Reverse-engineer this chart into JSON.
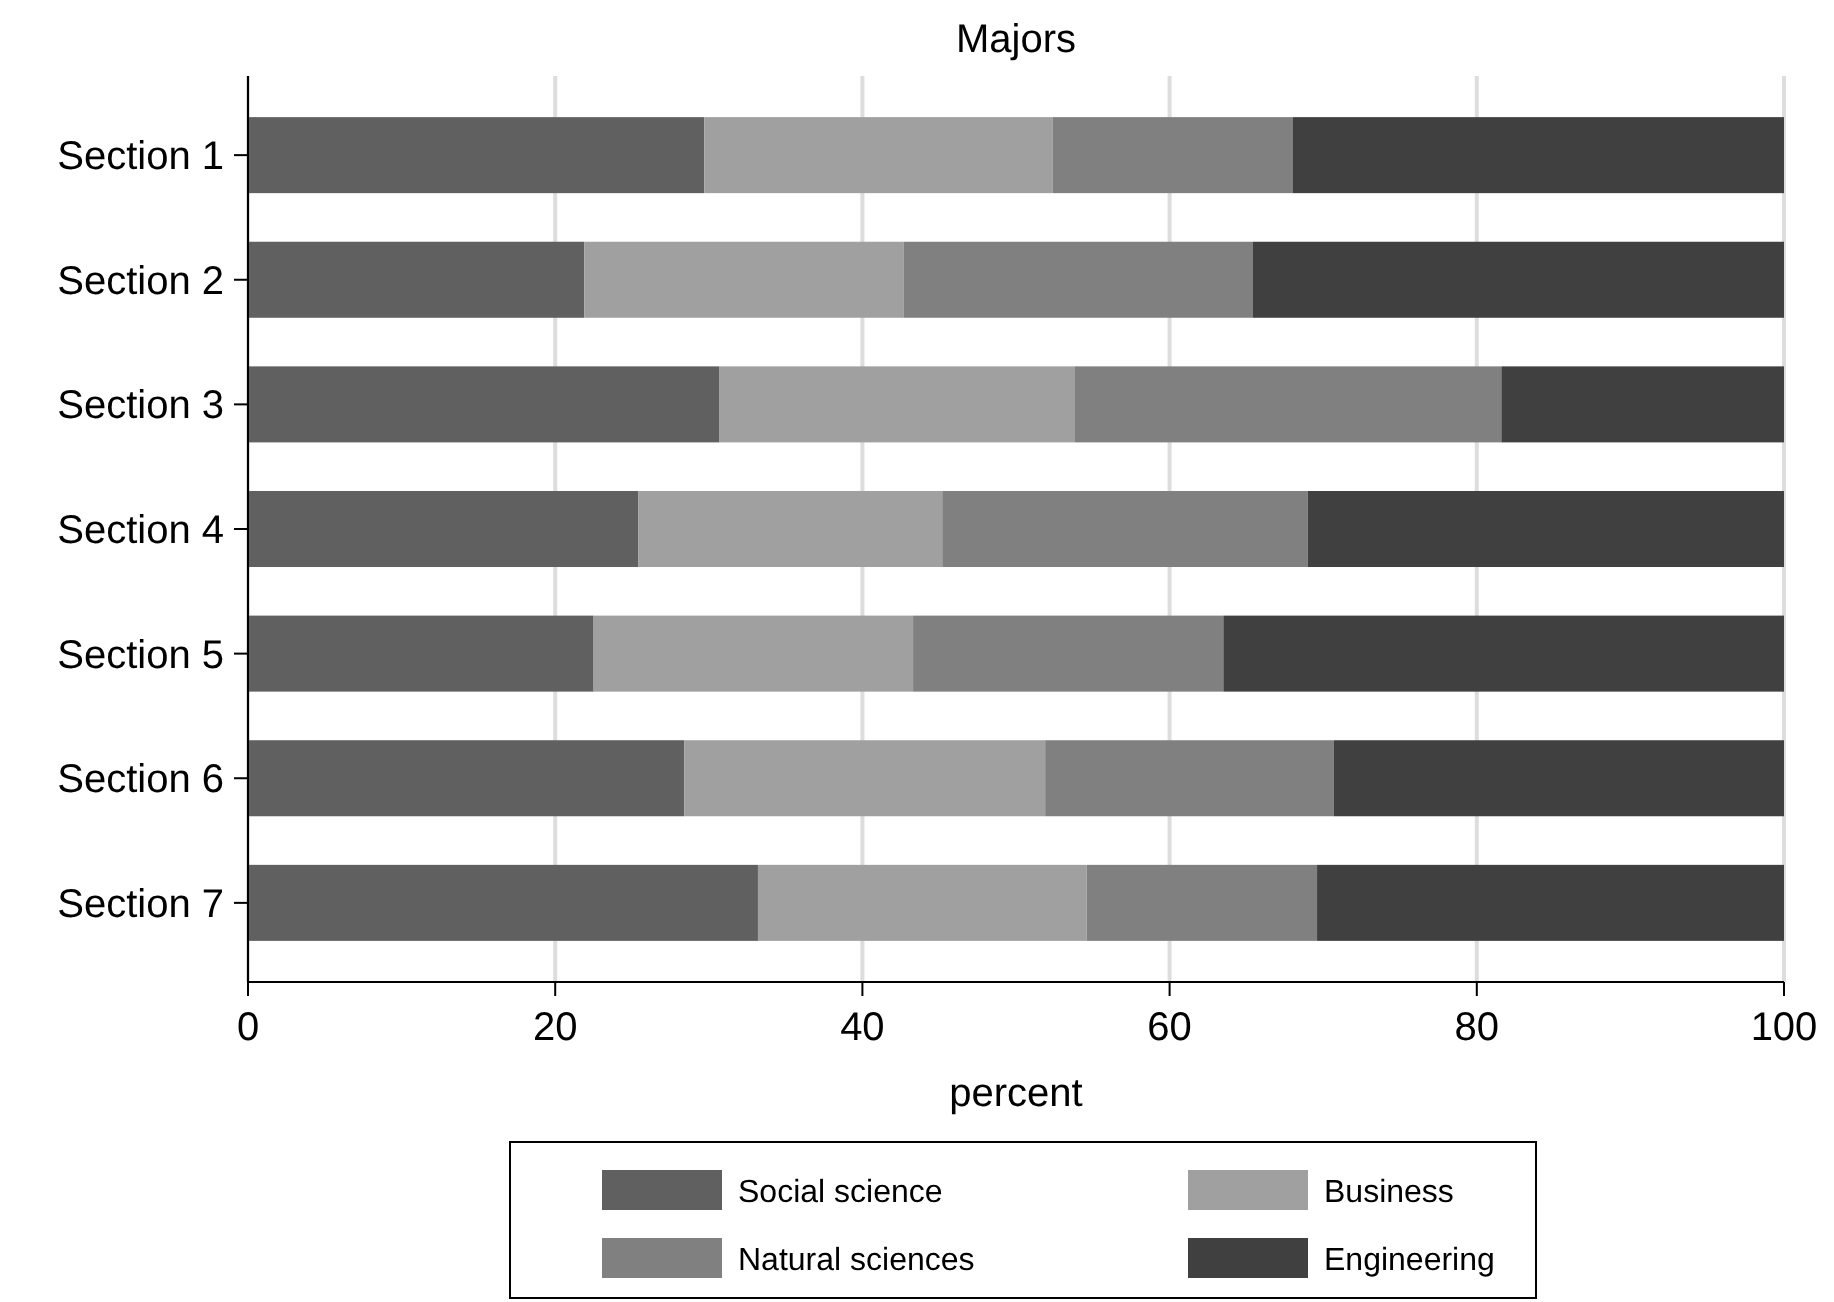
{
  "chart_data": {
    "type": "bar",
    "orientation": "horizontal",
    "stacked": true,
    "title": "Majors",
    "xlabel": "percent",
    "categories": [
      "Section 1",
      "Section 2",
      "Section 3",
      "Section 4",
      "Section 5",
      "Section 6",
      "Section 7"
    ],
    "series": [
      {
        "name": "Social science",
        "color": "#606060",
        "values": [
          29.7,
          21.9,
          30.7,
          25.4,
          22.5,
          28.4,
          33.2
        ]
      },
      {
        "name": "Business",
        "color": "#a0a0a0",
        "values": [
          22.7,
          20.8,
          23.1,
          19.8,
          20.8,
          23.5,
          21.4
        ]
      },
      {
        "name": "Natural sciences",
        "color": "#808080",
        "values": [
          15.6,
          22.7,
          27.8,
          23.8,
          20.2,
          18.8,
          15.0
        ]
      },
      {
        "name": "Engineering",
        "color": "#404040",
        "values": [
          32.0,
          34.6,
          18.4,
          31.0,
          36.5,
          29.3,
          30.4
        ]
      }
    ],
    "xlim": [
      0,
      100
    ],
    "xticks": [
      0,
      20,
      40,
      60,
      80,
      100
    ],
    "grid": "x",
    "legend": "bottom"
  }
}
